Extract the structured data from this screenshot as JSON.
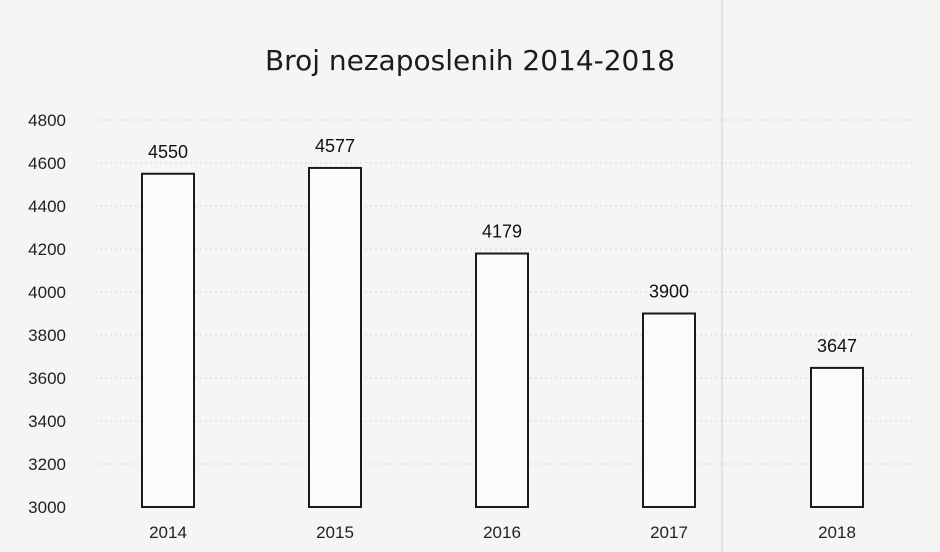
{
  "chart_data": {
    "type": "bar",
    "title": "Broj nezaposlenih 2014-2018",
    "categories": [
      "2014",
      "2015",
      "2016",
      "2017",
      "2018"
    ],
    "values": [
      4550,
      4577,
      4179,
      3900,
      3647
    ],
    "ylim": [
      3000,
      4800
    ],
    "yticks": [
      3000,
      3200,
      3400,
      3600,
      3800,
      4000,
      4200,
      4400,
      4600,
      4800
    ],
    "data_labels": true,
    "grid": true,
    "colors": {
      "bar_fill": "#fbfbfa",
      "bar_stroke": "#1a1a1a",
      "background": "#f5f5f3"
    }
  }
}
